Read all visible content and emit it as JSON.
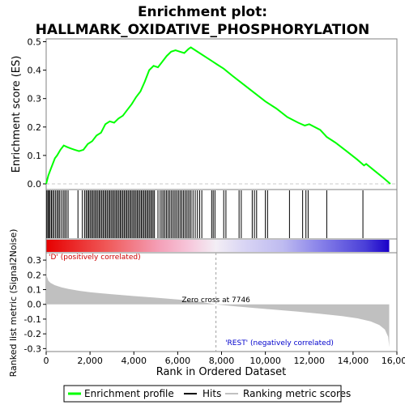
{
  "chart_data": {
    "type": "line",
    "title_line1": "Enrichment plot:",
    "title_line2": "HALLMARK_OXIDATIVE_PHOSPHORYLATION",
    "es_panel": {
      "ylabel": "Enrichment score (ES)",
      "ylim": [
        -0.02,
        0.51
      ],
      "yticks": [
        "0.0",
        "0.1",
        "0.2",
        "0.3",
        "0.4",
        "0.5"
      ],
      "ytick_values": [
        0.0,
        0.1,
        0.2,
        0.3,
        0.4,
        0.5
      ],
      "series": [
        {
          "name": "Enrichment profile",
          "color": "#00ff00",
          "x": [
            0,
            100,
            200,
            300,
            400,
            500,
            650,
            800,
            950,
            1100,
            1300,
            1500,
            1700,
            1900,
            2100,
            2300,
            2500,
            2700,
            2900,
            3100,
            3300,
            3500,
            3700,
            3900,
            4100,
            4300,
            4500,
            4700,
            4900,
            5100,
            5300,
            5500,
            5700,
            5900,
            6100,
            6300,
            6500,
            6600,
            6800,
            7000,
            7300,
            7600,
            7800,
            8100,
            8500,
            9000,
            9500,
            10000,
            10500,
            11000,
            11500,
            11800,
            12000,
            12500,
            12800,
            13200,
            13700,
            14200,
            14500,
            14600,
            15000,
            15400,
            15700
          ],
          "y": [
            0.0,
            0.03,
            0.05,
            0.07,
            0.09,
            0.1,
            0.12,
            0.135,
            0.13,
            0.125,
            0.12,
            0.115,
            0.12,
            0.14,
            0.15,
            0.17,
            0.18,
            0.21,
            0.22,
            0.215,
            0.23,
            0.24,
            0.26,
            0.28,
            0.305,
            0.325,
            0.36,
            0.4,
            0.415,
            0.41,
            0.43,
            0.45,
            0.465,
            0.47,
            0.465,
            0.46,
            0.475,
            0.48,
            0.47,
            0.46,
            0.445,
            0.43,
            0.42,
            0.405,
            0.38,
            0.35,
            0.32,
            0.29,
            0.265,
            0.235,
            0.215,
            0.205,
            0.21,
            0.19,
            0.165,
            0.145,
            0.115,
            0.085,
            0.065,
            0.07,
            0.045,
            0.02,
            0.0
          ]
        }
      ]
    },
    "hits_panel": {
      "name": "Hits",
      "hit_ranks": [
        30,
        80,
        130,
        180,
        240,
        300,
        360,
        430,
        500,
        560,
        620,
        700,
        780,
        850,
        920,
        1000,
        1450,
        1650,
        1750,
        1820,
        1880,
        1940,
        2000,
        2060,
        2120,
        2180,
        2240,
        2300,
        2360,
        2420,
        2480,
        2540,
        2600,
        2660,
        2720,
        2780,
        2840,
        2900,
        2960,
        3020,
        3080,
        3140,
        3200,
        3260,
        3320,
        3380,
        3440,
        3500,
        3560,
        3620,
        3680,
        3740,
        3800,
        3860,
        3920,
        3980,
        4040,
        4100,
        4160,
        4220,
        4280,
        4340,
        4400,
        4460,
        4520,
        4580,
        4640,
        4700,
        4760,
        4820,
        4880,
        4940,
        5100,
        5200,
        5280,
        5350,
        5420,
        5490,
        5560,
        5630,
        5700,
        5770,
        5840,
        5910,
        5980,
        6050,
        6120,
        6190,
        6260,
        6330,
        6400,
        6470,
        6540,
        6610,
        6700,
        6800,
        6900,
        7000,
        7100,
        7550,
        7620,
        7700,
        8100,
        8200,
        8800,
        8900,
        9400,
        9500,
        9600,
        10000,
        10100,
        11100,
        11700,
        11850,
        11950,
        12800,
        14450
      ]
    },
    "rank_panel": {
      "name": "Ranking metric scores",
      "ylabel": "Ranked list metric (Signal2Noise)",
      "ylim": [
        -0.32,
        0.35
      ],
      "yticks": [
        "0.3",
        "0.2",
        "0.1",
        "0.0",
        "-0.1",
        "-0.2",
        "-0.3"
      ],
      "ytick_values": [
        0.3,
        0.2,
        0.1,
        0.0,
        -0.1,
        -0.2,
        -0.3
      ],
      "x": [
        0,
        30,
        100,
        200,
        400,
        700,
        1000,
        1500,
        2000,
        3000,
        4000,
        5000,
        6000,
        7000,
        7746,
        8500,
        9500,
        10500,
        11500,
        12500,
        13500,
        14200,
        14800,
        15200,
        15450,
        15600,
        15650
      ],
      "y": [
        0.25,
        0.19,
        0.16,
        0.145,
        0.13,
        0.115,
        0.105,
        0.092,
        0.082,
        0.068,
        0.056,
        0.045,
        0.033,
        0.018,
        0.0,
        -0.012,
        -0.025,
        -0.037,
        -0.05,
        -0.064,
        -0.08,
        -0.095,
        -0.115,
        -0.14,
        -0.17,
        -0.22,
        -0.29
      ],
      "color": "#c0c0c0",
      "positive_label": "'D' (positively correlated)",
      "positive_color": "#cc0000",
      "negative_label": "'REST' (negatively correlated)",
      "negative_color": "#0000cc",
      "zero_cross_label": "Zero cross at 7746",
      "zero_cross_rank": 7746
    },
    "xaxis": {
      "xlabel": "Rank in Ordered Dataset",
      "xlim": [
        0,
        16000
      ],
      "xticks": [
        "0",
        "2,000",
        "4,000",
        "6,000",
        "8,000",
        "10,000",
        "12,000",
        "14,000",
        "16,000"
      ],
      "xtick_values": [
        0,
        2000,
        4000,
        6000,
        8000,
        10000,
        12000,
        14000,
        16000
      ],
      "n_genes": 15650
    },
    "legend": [
      {
        "label": "Enrichment profile",
        "color": "#00ff00"
      },
      {
        "label": "Hits",
        "color": "#000000"
      },
      {
        "label": "Ranking metric scores",
        "color": "#c0c0c0"
      }
    ]
  }
}
